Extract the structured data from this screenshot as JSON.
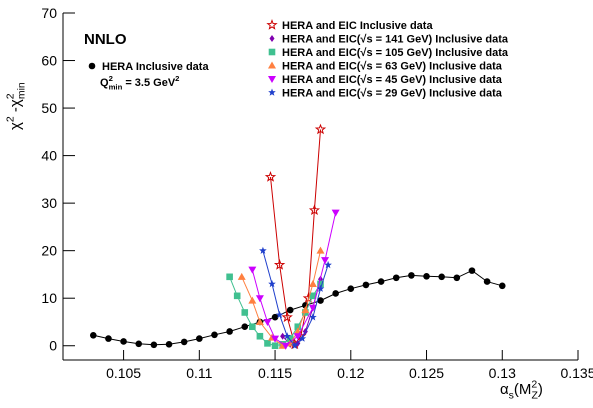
{
  "chart_data": {
    "type": "line",
    "x_label": [
      "α",
      "s",
      "(M",
      "2",
      "Z",
      ")"
    ],
    "y_label": [
      "χ",
      "2",
      " -χ",
      "2",
      "min"
    ],
    "annotations": {
      "order": "NNLO",
      "cut": [
        "Q",
        "2",
        "min",
        " = 3.5 GeV",
        "2"
      ]
    },
    "xlim": [
      0.101,
      0.135
    ],
    "ylim": [
      -3,
      70
    ],
    "xticks": [
      0.105,
      0.11,
      0.115,
      0.12,
      0.125,
      0.13,
      0.135
    ],
    "yticks": [
      0,
      10,
      20,
      30,
      40,
      50,
      60,
      70
    ],
    "series": [
      {
        "name": "HERA Inclusive data",
        "color": "#000000",
        "marker": "circle",
        "x": [
          0.103,
          0.104,
          0.105,
          0.106,
          0.107,
          0.108,
          0.109,
          0.11,
          0.111,
          0.112,
          0.113,
          0.114,
          0.115,
          0.116,
          0.117,
          0.118,
          0.119,
          0.12,
          0.121,
          0.122,
          0.123,
          0.124,
          0.125,
          0.126,
          0.127,
          0.128,
          0.129,
          0.13
        ],
        "values": [
          2.2,
          1.5,
          0.9,
          0.4,
          0.2,
          0.3,
          0.8,
          1.5,
          2.3,
          3.0,
          4.0,
          5.0,
          6.0,
          7.5,
          8.5,
          9.5,
          11.0,
          12.0,
          12.8,
          13.5,
          14.3,
          14.8,
          14.6,
          14.5,
          14.3,
          15.8,
          13.5,
          12.6
        ]
      },
      {
        "name": "HERA and EIC Inclusive data",
        "color": "#cc0000",
        "marker": "open-star",
        "x": [
          0.1147,
          0.1153,
          0.1158,
          0.1163,
          0.1167,
          0.1172,
          0.1176,
          0.118
        ],
        "values": [
          35.5,
          17,
          6,
          0.3,
          2,
          10,
          28.5,
          45.5
        ]
      },
      {
        "name": "HERA and EIC(√s = 141 GeV) Inclusive data",
        "color": "#8000b0",
        "marker": "diamond",
        "x": [
          0.1155,
          0.116,
          0.1165,
          0.117,
          0.1175,
          0.118
        ],
        "values": [
          2,
          0.3,
          0.5,
          3,
          8,
          14
        ]
      },
      {
        "name": "HERA and EIC(√s = 105 GeV) Inclusive data",
        "color": "#40c090",
        "marker": "square",
        "x": [
          0.112,
          0.1125,
          0.113,
          0.1135,
          0.114,
          0.1145,
          0.115,
          0.1155,
          0.116,
          0.1165,
          0.117,
          0.1175,
          0.118
        ],
        "values": [
          14.5,
          10.5,
          7,
          4,
          2,
          0.5,
          0,
          0.3,
          1.5,
          4,
          7,
          10.5,
          13
        ]
      },
      {
        "name": "HERA and EIC(√s = 63 GeV) Inclusive data",
        "color": "#ff8040",
        "marker": "triangle-up",
        "x": [
          0.1128,
          0.1135,
          0.114,
          0.1148,
          0.1155,
          0.116,
          0.1165,
          0.117,
          0.1175,
          0.118
        ],
        "values": [
          14.5,
          9.5,
          5,
          1.7,
          0,
          0.5,
          3,
          7.5,
          13,
          20
        ]
      },
      {
        "name": "HERA and EIC(√s = 45 GeV) Inclusive data",
        "color": "#cc00ff",
        "marker": "triangle-down",
        "x": [
          0.1135,
          0.114,
          0.1145,
          0.115,
          0.1157,
          0.1165,
          0.1175,
          0.1183,
          0.119
        ],
        "values": [
          16,
          10,
          5,
          1.5,
          0,
          2,
          8,
          18,
          28
        ]
      },
      {
        "name": "HERA and EIC(√s = 29 GeV) Inclusive data",
        "color": "#2040cc",
        "marker": "star",
        "x": [
          0.1142,
          0.1148,
          0.1153,
          0.1158,
          0.1163,
          0.1168,
          0.1175,
          0.118,
          0.1185
        ],
        "values": [
          20,
          13,
          6.5,
          2,
          0,
          1.5,
          6,
          12,
          17
        ]
      }
    ]
  }
}
